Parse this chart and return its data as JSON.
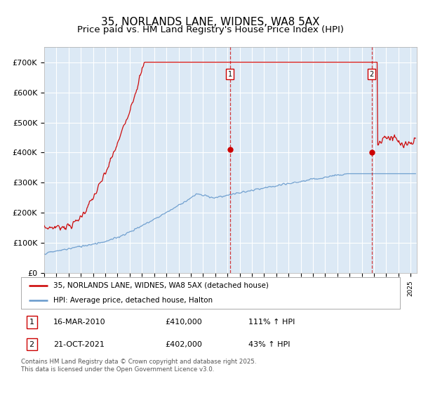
{
  "title": "35, NORLANDS LANE, WIDNES, WA8 5AX",
  "subtitle": "Price paid vs. HM Land Registry's House Price Index (HPI)",
  "background_color": "#dce9f5",
  "plot_bg_color": "#dce9f5",
  "ylim": [
    0,
    750000
  ],
  "yticks": [
    0,
    100000,
    200000,
    300000,
    400000,
    500000,
    600000,
    700000
  ],
  "ytick_labels": [
    "£0",
    "£100K",
    "£200K",
    "£300K",
    "£400K",
    "£500K",
    "£600K",
    "£700K"
  ],
  "xlim_start": 1995.0,
  "xlim_end": 2025.5,
  "red_line_color": "#cc0000",
  "blue_line_color": "#6699cc",
  "vline_color": "#cc0000",
  "marker1_x": 2010.21,
  "marker1_y": 410000,
  "marker1_label": "1",
  "marker2_x": 2021.8,
  "marker2_y": 402000,
  "marker2_label": "2",
  "legend_line1": "35, NORLANDS LANE, WIDNES, WA8 5AX (detached house)",
  "legend_line2": "HPI: Average price, detached house, Halton",
  "table_row1": [
    "1",
    "16-MAR-2010",
    "£410,000",
    "111% ↑ HPI"
  ],
  "table_row2": [
    "2",
    "21-OCT-2021",
    "£402,000",
    "43% ↑ HPI"
  ],
  "footnote": "Contains HM Land Registry data © Crown copyright and database right 2025.\nThis data is licensed under the Open Government Licence v3.0.",
  "title_fontsize": 11,
  "subtitle_fontsize": 9.5,
  "axis_fontsize": 8,
  "legend_fontsize": 8
}
